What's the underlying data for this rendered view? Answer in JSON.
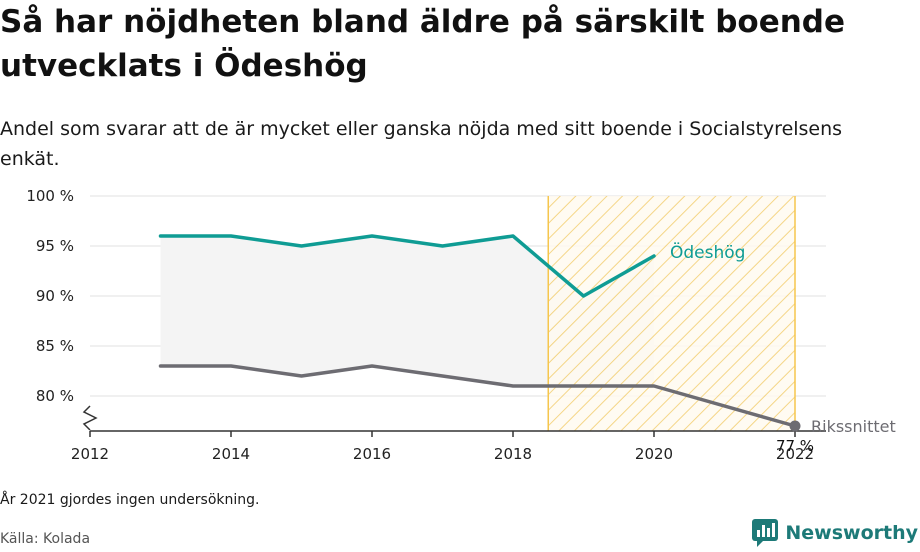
{
  "title": "Så har nöjdheten bland äldre på särskilt boende utvecklats i Ödeshög",
  "subtitle": "Andel som svarar att de är mycket eller ganska nöjda med sitt boende i Socialstyrelsens enkät.",
  "note": "År 2021 gjordes ingen undersökning.",
  "source": "Källa: Kolada",
  "brand": {
    "name": "Newsworthy",
    "icon": "newsworthy-logo-icon"
  },
  "colors": {
    "local": "#0f9c94",
    "national": "#6d6c72",
    "grid": "#e2e2e2",
    "band": "#f4f4f4",
    "hatch": "#f3cf72",
    "hatch_border": "#f6c64d",
    "brand": "#1d7a78"
  },
  "chart_data": {
    "type": "line",
    "x": [
      2013,
      2014,
      2015,
      2016,
      2017,
      2018,
      2019,
      2020,
      2022
    ],
    "series": [
      {
        "name": "Ödeshög",
        "values": [
          96,
          96,
          95,
          96,
          95,
          96,
          90,
          94,
          null
        ]
      },
      {
        "name": "Rikssnittet",
        "values": [
          83,
          83,
          82,
          83,
          82,
          81,
          81,
          81,
          77
        ]
      }
    ],
    "end_label": {
      "x": 2022,
      "text": "77 %"
    },
    "xticks": [
      "2012",
      "2014",
      "2016",
      "2018",
      "2020",
      "2022"
    ],
    "yticks": [
      "100 %",
      "95 %",
      "90 %",
      "85 %",
      "80 %"
    ],
    "ylim": [
      77,
      100
    ],
    "xlim": [
      2012,
      2022.5
    ],
    "y_axis_break": true,
    "highlight_x_range": [
      2018.5,
      2022
    ],
    "grid": true,
    "legend": "direct labels at line ends"
  }
}
